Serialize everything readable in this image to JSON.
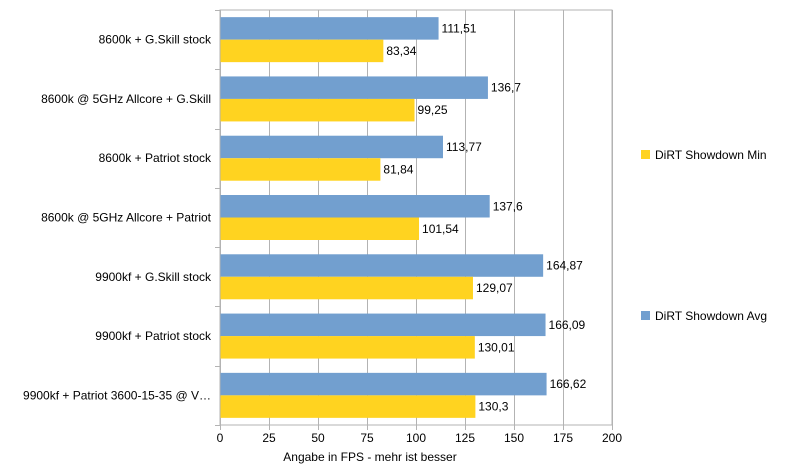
{
  "chart_data": {
    "type": "bar",
    "orientation": "horizontal",
    "categories": [
      "8600k + G.Skill stock",
      "8600k @ 5GHz Allcore + G.Skill",
      "8600k + Patriot stock",
      "8600k @ 5GHz Allcore + Patriot",
      "9900kf + G.Skill stock",
      "9900kf + Patriot stock",
      "9900kf + Patriot 3600-15-35 @ V…"
    ],
    "series": [
      {
        "name": "DiRT Showdown Avg",
        "color": "#729fcf",
        "values": [
          111.51,
          136.7,
          113.77,
          137.6,
          164.87,
          166.09,
          166.62
        ],
        "labels": [
          "111,51",
          "136,7",
          "113,77",
          "137,6",
          "164,87",
          "166,09",
          "166,62"
        ]
      },
      {
        "name": "DiRT Showdown Min",
        "color": "#ffd320",
        "values": [
          83.34,
          99.25,
          81.84,
          101.54,
          129.07,
          130.01,
          130.3
        ],
        "labels": [
          "83,34",
          "99,25",
          "81,84",
          "101,54",
          "129,07",
          "130,01",
          "130,3"
        ]
      }
    ],
    "xlabel": "Angabe in FPS - mehr ist besser",
    "ylabel": "",
    "xlim": [
      0,
      200
    ],
    "xticks": [
      0,
      25,
      50,
      75,
      100,
      125,
      150,
      175,
      200
    ],
    "grid": "vertical",
    "legend": {
      "placement": "right",
      "entries": [
        {
          "name": "DiRT Showdown Min",
          "color": "#ffd320"
        },
        {
          "name": "DiRT Showdown Avg",
          "color": "#729fcf"
        }
      ]
    }
  }
}
